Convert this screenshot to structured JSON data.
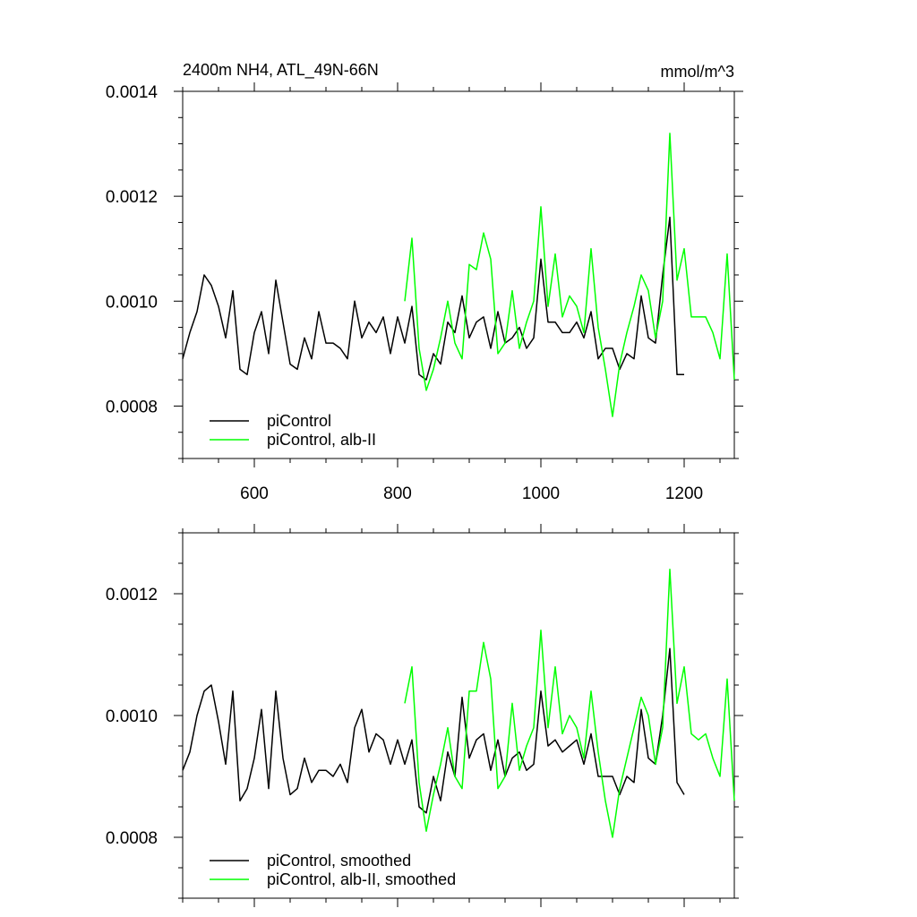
{
  "chart_data": [
    {
      "type": "line",
      "title": "2400m NH4, ATL_49N-66N",
      "units": "mmol/m^3",
      "xlim": [
        500,
        1270
      ],
      "ylim": [
        0.0007,
        0.0014
      ],
      "xticks": [
        600,
        800,
        1000,
        1200
      ],
      "xtick_labels": [
        "600",
        "800",
        "1000",
        "1200"
      ],
      "yticks": [
        0.0008,
        0.001,
        0.0012,
        0.0014
      ],
      "ytick_labels": [
        "0.0008",
        "0.0010",
        "0.0012",
        "0.0014"
      ],
      "grid": false,
      "legend": "bottom-left",
      "series": [
        {
          "name": "piControl",
          "color": "#000000",
          "x": [
            500,
            510,
            520,
            530,
            540,
            550,
            560,
            570,
            580,
            590,
            600,
            610,
            620,
            630,
            640,
            650,
            660,
            670,
            680,
            690,
            700,
            710,
            720,
            730,
            740,
            750,
            760,
            770,
            780,
            790,
            800,
            810,
            820,
            830,
            840,
            850,
            860,
            870,
            880,
            890,
            900,
            910,
            920,
            930,
            940,
            950,
            960,
            970,
            980,
            990,
            1000,
            1010,
            1020,
            1030,
            1040,
            1050,
            1060,
            1070,
            1080,
            1090,
            1100,
            1110,
            1120,
            1130,
            1140,
            1150,
            1160,
            1170,
            1180,
            1190,
            1200
          ],
          "y": [
            0.00089,
            0.00094,
            0.00098,
            0.00105,
            0.00103,
            0.00099,
            0.00093,
            0.00102,
            0.00087,
            0.00086,
            0.00094,
            0.00098,
            0.0009,
            0.00104,
            0.00096,
            0.00088,
            0.00087,
            0.00093,
            0.00089,
            0.00098,
            0.00092,
            0.00092,
            0.00091,
            0.00089,
            0.001,
            0.00093,
            0.00096,
            0.00094,
            0.00097,
            0.0009,
            0.00097,
            0.00092,
            0.00099,
            0.00086,
            0.00085,
            0.0009,
            0.00088,
            0.00096,
            0.00094,
            0.00101,
            0.00093,
            0.00096,
            0.00097,
            0.00091,
            0.00098,
            0.00092,
            0.00093,
            0.00095,
            0.00091,
            0.00093,
            0.00108,
            0.00096,
            0.00096,
            0.00094,
            0.00094,
            0.00096,
            0.00093,
            0.00098,
            0.00089,
            0.00091,
            0.00091,
            0.00087,
            0.0009,
            0.00089,
            0.00101,
            0.00093,
            0.00092,
            0.00105,
            0.00116,
            0.00086,
            0.00086
          ]
        },
        {
          "name": "piControl, alb-II",
          "color": "#00ff00",
          "x": [
            810,
            820,
            830,
            840,
            850,
            860,
            870,
            880,
            890,
            900,
            910,
            920,
            930,
            940,
            950,
            960,
            970,
            980,
            990,
            1000,
            1010,
            1020,
            1030,
            1040,
            1050,
            1060,
            1070,
            1080,
            1090,
            1100,
            1110,
            1120,
            1130,
            1140,
            1150,
            1160,
            1170,
            1180,
            1190,
            1200,
            1210,
            1220,
            1230,
            1240,
            1250,
            1260,
            1270
          ],
          "y": [
            0.001,
            0.00112,
            0.00091,
            0.00083,
            0.00087,
            0.00093,
            0.001,
            0.00092,
            0.00089,
            0.00107,
            0.00106,
            0.00113,
            0.00108,
            0.0009,
            0.00092,
            0.00102,
            0.00091,
            0.00096,
            0.001,
            0.00118,
            0.00099,
            0.00109,
            0.00097,
            0.00101,
            0.00099,
            0.00094,
            0.0011,
            0.00095,
            0.00087,
            0.00078,
            0.00088,
            0.00094,
            0.00099,
            0.00105,
            0.00102,
            0.00093,
            0.001,
            0.00132,
            0.00104,
            0.0011,
            0.00097,
            0.00097,
            0.00097,
            0.00094,
            0.00089,
            0.00109,
            0.00085
          ]
        }
      ]
    },
    {
      "type": "line",
      "title": "",
      "xlim": [
        500,
        1270
      ],
      "ylim": [
        0.0007,
        0.0013
      ],
      "xticks": [
        600,
        800,
        1000,
        1200
      ],
      "yticks": [
        0.0008,
        0.001,
        0.0012
      ],
      "ytick_labels": [
        "0.0008",
        "0.0010",
        "0.0012"
      ],
      "grid": false,
      "legend": "bottom-left",
      "series": [
        {
          "name": "piControl, smoothed",
          "color": "#000000",
          "x": [
            500,
            510,
            520,
            530,
            540,
            550,
            560,
            570,
            580,
            590,
            600,
            610,
            620,
            630,
            640,
            650,
            660,
            670,
            680,
            690,
            700,
            710,
            720,
            730,
            740,
            750,
            760,
            770,
            780,
            790,
            800,
            810,
            820,
            830,
            840,
            850,
            860,
            870,
            880,
            890,
            900,
            910,
            920,
            930,
            940,
            950,
            960,
            970,
            980,
            990,
            1000,
            1010,
            1020,
            1030,
            1040,
            1050,
            1060,
            1070,
            1080,
            1090,
            1100,
            1110,
            1120,
            1130,
            1140,
            1150,
            1160,
            1170,
            1180,
            1190,
            1200
          ],
          "y": [
            0.00091,
            0.00094,
            0.001,
            0.00104,
            0.00105,
            0.00099,
            0.00092,
            0.00104,
            0.00086,
            0.00088,
            0.00093,
            0.00101,
            0.00088,
            0.00104,
            0.00093,
            0.00087,
            0.00088,
            0.00093,
            0.00089,
            0.00091,
            0.00091,
            0.0009,
            0.00092,
            0.00089,
            0.00098,
            0.00101,
            0.00094,
            0.00097,
            0.00096,
            0.00092,
            0.00096,
            0.00092,
            0.00096,
            0.00085,
            0.00084,
            0.0009,
            0.00086,
            0.00094,
            0.0009,
            0.00103,
            0.00093,
            0.00096,
            0.00097,
            0.00091,
            0.00096,
            0.0009,
            0.00093,
            0.00094,
            0.00091,
            0.00092,
            0.00104,
            0.00095,
            0.00096,
            0.00094,
            0.00095,
            0.00096,
            0.00092,
            0.00097,
            0.0009,
            0.0009,
            0.0009,
            0.00087,
            0.0009,
            0.00089,
            0.00101,
            0.00093,
            0.00092,
            0.001,
            0.00111,
            0.00089,
            0.00087
          ]
        },
        {
          "name": "piControl, alb-II, smoothed",
          "color": "#00ff00",
          "x": [
            810,
            820,
            830,
            840,
            850,
            860,
            870,
            880,
            890,
            900,
            910,
            920,
            930,
            940,
            950,
            960,
            970,
            980,
            990,
            1000,
            1010,
            1020,
            1030,
            1040,
            1050,
            1060,
            1070,
            1080,
            1090,
            1100,
            1110,
            1120,
            1130,
            1140,
            1150,
            1160,
            1170,
            1180,
            1190,
            1200,
            1210,
            1220,
            1230,
            1240,
            1250,
            1260,
            1270
          ],
          "y": [
            0.00102,
            0.00108,
            0.00089,
            0.00081,
            0.00087,
            0.00092,
            0.00098,
            0.0009,
            0.00088,
            0.00104,
            0.00104,
            0.00112,
            0.00106,
            0.00088,
            0.0009,
            0.00102,
            0.00091,
            0.00095,
            0.00098,
            0.00114,
            0.00098,
            0.00108,
            0.00097,
            0.001,
            0.00098,
            0.00093,
            0.00104,
            0.00094,
            0.00086,
            0.0008,
            0.00088,
            0.00093,
            0.00098,
            0.00103,
            0.001,
            0.00092,
            0.00098,
            0.00124,
            0.00102,
            0.00108,
            0.00097,
            0.00096,
            0.00097,
            0.00093,
            0.0009,
            0.00106,
            0.00086
          ]
        }
      ]
    }
  ]
}
